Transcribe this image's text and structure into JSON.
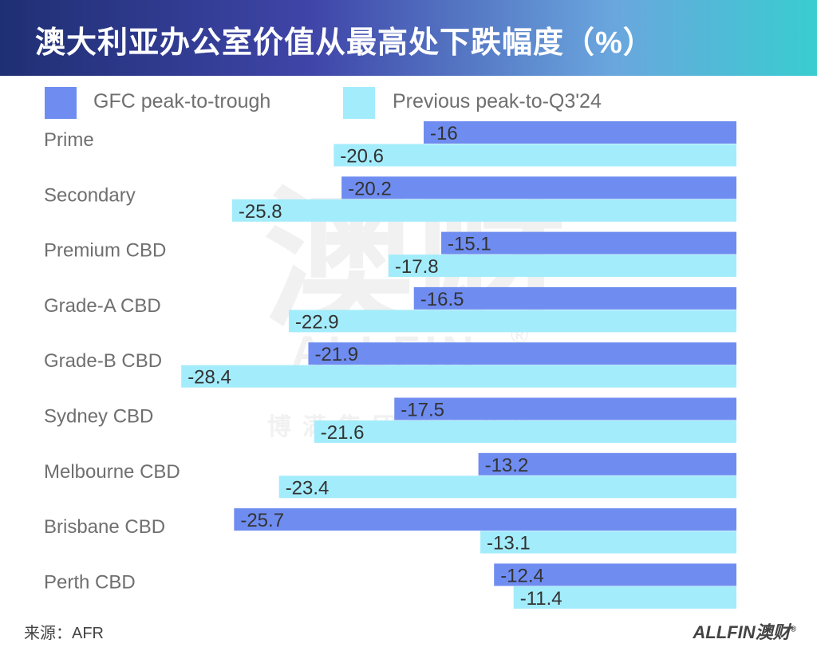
{
  "title": "澳大利亚办公室价值从最高处下跌幅度（%）",
  "legend": [
    {
      "label": "GFC peak-to-trough",
      "color": "#6f8df0"
    },
    {
      "label": "Previous peak-to-Q3'24",
      "color": "#a3ecfb"
    }
  ],
  "watermark": {
    "main": "澳财",
    "brand": "ALLFIN",
    "registered": "®",
    "sub": "博满集团旗下企业"
  },
  "footer": {
    "source": "来源：AFR",
    "logo": "ALLFIN澳财",
    "registered": "®"
  },
  "chart_data": {
    "type": "bar",
    "orientation": "horizontal",
    "title": "澳大利亚办公室价值从最高处下跌幅度（%）",
    "categories": [
      "Prime",
      "Secondary",
      "Premium CBD",
      "Grade-A CBD",
      "Grade-B CBD",
      "Sydney CBD",
      "Melbourne CBD",
      "Brisbane CBD",
      "Perth CBD"
    ],
    "series": [
      {
        "name": "GFC peak-to-trough",
        "color": "#6f8df0",
        "values": [
          -16,
          -20.2,
          -15.1,
          -16.5,
          -21.9,
          -17.5,
          -13.2,
          -25.7,
          -12.4
        ]
      },
      {
        "name": "Previous peak-to-Q3'24",
        "color": "#a3ecfb",
        "values": [
          -20.6,
          -25.8,
          -17.8,
          -22.9,
          -28.4,
          -21.6,
          -23.4,
          -13.1,
          -11.4
        ]
      }
    ],
    "value_labels": true,
    "legend_position": "top",
    "grid": false
  }
}
